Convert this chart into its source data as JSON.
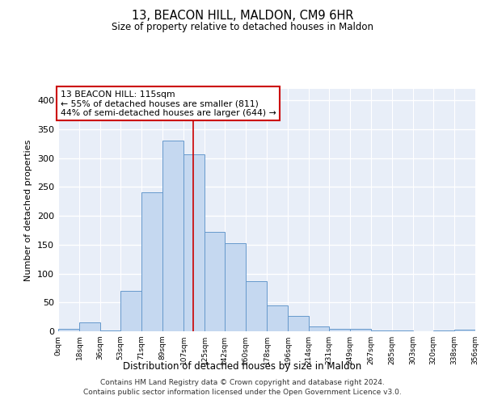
{
  "title": "13, BEACON HILL, MALDON, CM9 6HR",
  "subtitle": "Size of property relative to detached houses in Maldon",
  "xlabel": "Distribution of detached houses by size in Maldon",
  "ylabel": "Number of detached properties",
  "bin_edges": [
    0,
    18,
    36,
    53,
    71,
    89,
    107,
    125,
    142,
    160,
    178,
    196,
    214,
    231,
    249,
    267,
    285,
    303,
    320,
    338,
    356
  ],
  "bin_labels": [
    "0sqm",
    "18sqm",
    "36sqm",
    "53sqm",
    "71sqm",
    "89sqm",
    "107sqm",
    "125sqm",
    "142sqm",
    "160sqm",
    "178sqm",
    "196sqm",
    "214sqm",
    "231sqm",
    "249sqm",
    "267sqm",
    "285sqm",
    "303sqm",
    "320sqm",
    "338sqm",
    "356sqm"
  ],
  "counts": [
    4,
    15,
    1,
    70,
    241,
    330,
    307,
    172,
    153,
    87,
    45,
    27,
    8,
    4,
    4,
    1,
    1,
    0,
    1,
    3
  ],
  "bar_color": "#c5d8f0",
  "bar_edge_color": "#6699cc",
  "vline_x": 115,
  "vline_color": "#cc0000",
  "annotation_text": "13 BEACON HILL: 115sqm\n← 55% of detached houses are smaller (811)\n44% of semi-detached houses are larger (644) →",
  "annotation_box_color": "white",
  "annotation_box_edge_color": "#cc0000",
  "ylim": [
    0,
    420
  ],
  "yticks": [
    0,
    50,
    100,
    150,
    200,
    250,
    300,
    350,
    400
  ],
  "bg_color": "#e8eef8",
  "grid_color": "white",
  "footer_line1": "Contains HM Land Registry data © Crown copyright and database right 2024.",
  "footer_line2": "Contains public sector information licensed under the Open Government Licence v3.0."
}
